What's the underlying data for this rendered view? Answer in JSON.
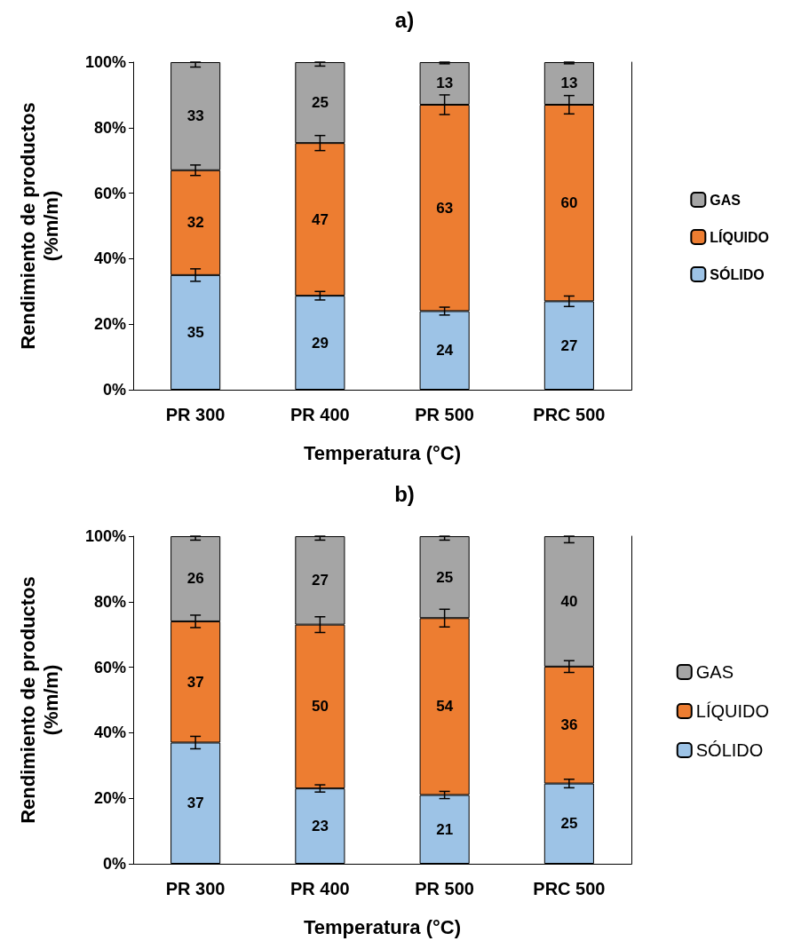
{
  "chart_data": [
    {
      "type": "bar",
      "title": "a)",
      "xlabel": "Temperatura (°C)",
      "ylabel": "Rendimiento de productos\n(%m/m)",
      "categories": [
        "PR 300",
        "PR 400",
        "PR 500",
        "PRC 500"
      ],
      "stacked": true,
      "legend": "right",
      "ylim": [
        0,
        100
      ],
      "yticks": [
        {
          "value": 0,
          "label": "0%"
        },
        {
          "value": 20,
          "label": "20%"
        },
        {
          "value": 40,
          "label": "40%"
        },
        {
          "value": 60,
          "label": "60%"
        },
        {
          "value": 80,
          "label": "80%"
        },
        {
          "value": 100,
          "label": "100%"
        }
      ],
      "series": [
        {
          "name": "SÓLIDO",
          "color": "#9dc3e6",
          "values": [
            35,
            28.7,
            24,
            27
          ],
          "value_labels": [
            "35",
            "29",
            "24",
            "27"
          ],
          "errors": [
            1.9,
            1.3,
            1.2,
            1.6
          ]
        },
        {
          "name": "LÍQUIDO",
          "color": "#ed7d31",
          "values": [
            32,
            46.6,
            63,
            60
          ],
          "value_labels": [
            "32",
            "47",
            "63",
            "60"
          ],
          "errors": [
            1.6,
            2.3,
            3,
            2.8
          ]
        },
        {
          "name": "GAS",
          "color": "#a5a5a5",
          "values": [
            33,
            24.7,
            13,
            13
          ],
          "value_labels": [
            "33",
            "25",
            "13",
            "13"
          ],
          "errors": [
            [
              98.5,
              100
            ],
            [
              98.8,
              100
            ],
            [
              99.5,
              100
            ],
            [
              99.5,
              100
            ]
          ]
        }
      ]
    },
    {
      "type": "bar",
      "title": "b)",
      "xlabel": "Temperatura (°C)",
      "ylabel": "Rendimiento de productos\n(%m/m)",
      "categories": [
        "PR 300",
        "PR 400",
        "PR 500",
        "PRC 500"
      ],
      "stacked": true,
      "legend": "right",
      "ylim": [
        0,
        100
      ],
      "yticks": [
        {
          "value": 0,
          "label": "0%"
        },
        {
          "value": 20,
          "label": "20%"
        },
        {
          "value": 40,
          "label": "40%"
        },
        {
          "value": 60,
          "label": "60%"
        },
        {
          "value": 80,
          "label": "80%"
        },
        {
          "value": 100,
          "label": "100%"
        }
      ],
      "series": [
        {
          "name": "SÓLIDO",
          "color": "#9dc3e6",
          "values": [
            37,
            23,
            21,
            24.5
          ],
          "value_labels": [
            "37",
            "23",
            "21",
            "25"
          ],
          "errors": [
            1.9,
            1.1,
            1.1,
            1.3
          ]
        },
        {
          "name": "LÍQUIDO",
          "color": "#ed7d31",
          "values": [
            37,
            50,
            54,
            35.7
          ],
          "value_labels": [
            "37",
            "50",
            "54",
            "36"
          ],
          "errors": [
            1.9,
            2.4,
            2.7,
            1.8
          ]
        },
        {
          "name": "GAS",
          "color": "#a5a5a5",
          "values": [
            26,
            27,
            25,
            39.8
          ],
          "value_labels": [
            "26",
            "27",
            "25",
            "40"
          ],
          "errors": [
            [
              98.8,
              100
            ],
            [
              98.8,
              100
            ],
            [
              98.8,
              100
            ],
            [
              98,
              100
            ]
          ]
        }
      ]
    }
  ]
}
